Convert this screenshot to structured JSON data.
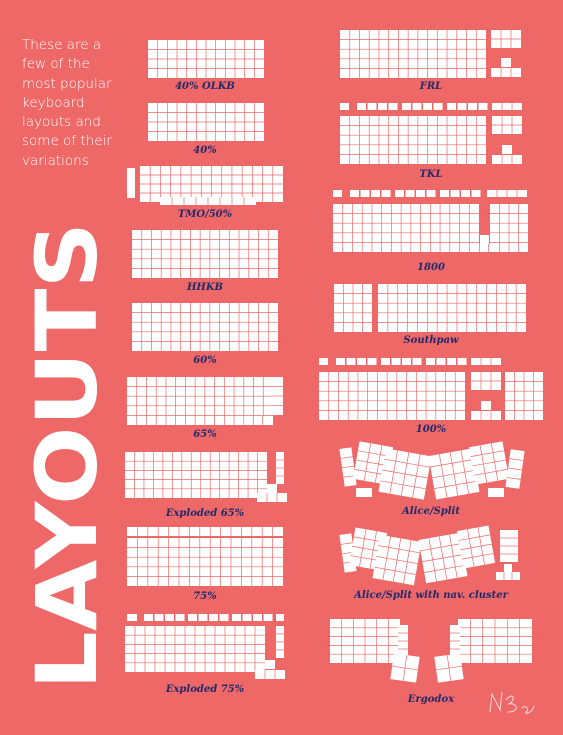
{
  "intro": "These are a few of the most popular keyboard layouts and some of their variations",
  "title": "LAYOUTS",
  "signature": "NB",
  "colors": {
    "background": "#ee6868",
    "key": "#ffffff",
    "label": "#1f2a6b"
  },
  "layouts_left": [
    {
      "id": "40-olkb",
      "name": "40% OLKB"
    },
    {
      "id": "40",
      "name": "40%"
    },
    {
      "id": "tmo-50",
      "name": "TMO/50%"
    },
    {
      "id": "hhkb",
      "name": "HHKB"
    },
    {
      "id": "60",
      "name": "60%"
    },
    {
      "id": "65",
      "name": "65%"
    },
    {
      "id": "exploded-65",
      "name": "Exploded 65%"
    },
    {
      "id": "75",
      "name": "75%"
    },
    {
      "id": "exploded-75",
      "name": "Exploded 75%"
    }
  ],
  "layouts_right": [
    {
      "id": "frl",
      "name": "FRL"
    },
    {
      "id": "tkl",
      "name": "TKL"
    },
    {
      "id": "1800",
      "name": "1800"
    },
    {
      "id": "southpaw",
      "name": "Southpaw"
    },
    {
      "id": "100",
      "name": "100%"
    },
    {
      "id": "alice-split",
      "name": "Alice/Split"
    },
    {
      "id": "alice-split-nav",
      "name": "Alice/Split with nav. cluster"
    },
    {
      "id": "ergodox",
      "name": "Ergodox"
    }
  ]
}
